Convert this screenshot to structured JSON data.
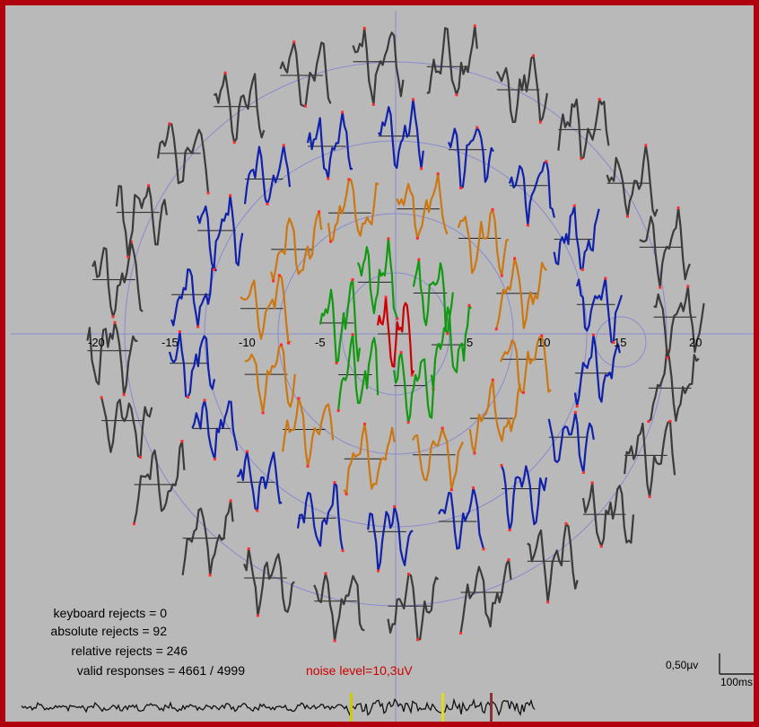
{
  "window": {
    "border_color": "#b00010",
    "background": "#b9b9b9"
  },
  "axis": {
    "tick_labels": [
      "-20",
      "-15",
      "-10",
      "-5",
      "5",
      "10",
      "15",
      "20"
    ]
  },
  "ring_colors": {
    "center": "#cc0000",
    "ring1": "#119911",
    "ring2": "#cc7711",
    "ring3": "#1122aa",
    "ring4": "#3b3b3b",
    "peak_marker": "#ff2a2a",
    "grid": "#8a8ad0"
  },
  "stats": {
    "keyboard_rejects": "keyboard rejects = 0",
    "absolute_rejects": "absolute rejects = 92",
    "relative_rejects": "relative rejects = 246",
    "valid_responses": "valid responses = 4661 / 4999"
  },
  "noise_level": "noise level=10,3uV",
  "scale_bar": {
    "amplitude": "0,50µv",
    "time": "100ms"
  }
}
